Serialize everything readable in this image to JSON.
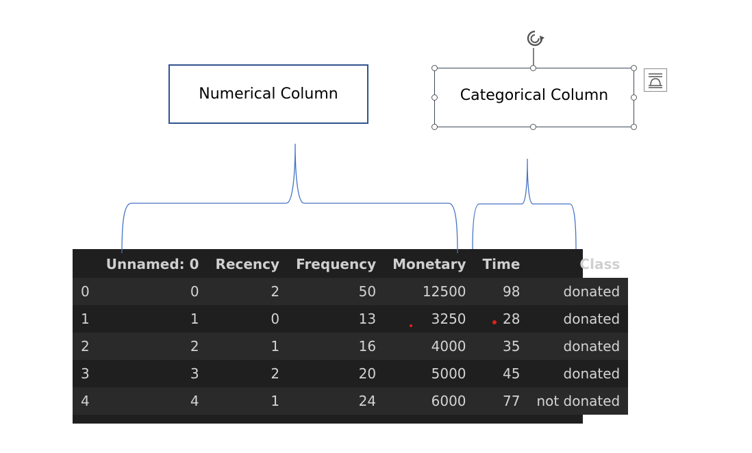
{
  "labels": {
    "numerical": "Numerical Column",
    "categorical": "Categorical Column"
  },
  "table": {
    "columns": [
      "",
      "Unnamed: 0",
      "Recency",
      "Frequency",
      "Monetary",
      "Time",
      "Class"
    ],
    "rows": [
      [
        "0",
        "0",
        "2",
        "50",
        "12500",
        "98",
        "donated"
      ],
      [
        "1",
        "1",
        "0",
        "13",
        "3250",
        "28",
        "donated"
      ],
      [
        "2",
        "2",
        "1",
        "16",
        "4000",
        "35",
        "donated"
      ],
      [
        "3",
        "3",
        "2",
        "20",
        "5000",
        "45",
        "donated"
      ],
      [
        "4",
        "4",
        "1",
        "24",
        "6000",
        "77",
        "not donated"
      ]
    ]
  },
  "icons": {
    "rotate": "rotate-handle-icon",
    "layout": "layout-options-icon"
  },
  "colors": {
    "bracket": "#4472c4",
    "box_border": "#2f528f",
    "table_bg": "#1f1f1f",
    "table_row_alt": "#2a2a2a",
    "marker": "#e02020"
  }
}
